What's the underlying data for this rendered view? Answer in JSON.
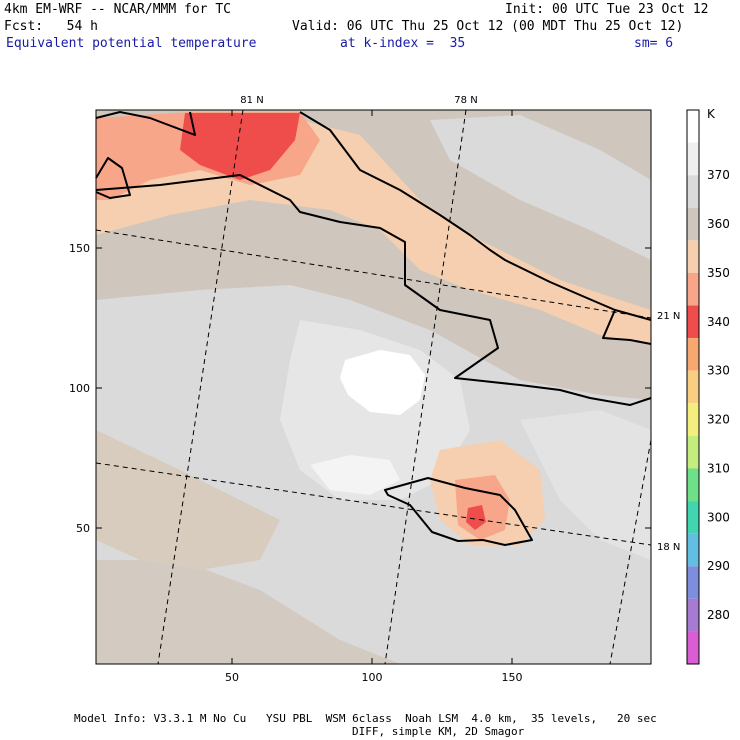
{
  "header": {
    "model_title": "4km EM-WRF -- NCAR/MMM for TC",
    "init": "Init: 00 UTC Tue 23 Oct 12",
    "forecast": "Fcst:   54 h",
    "valid": "Valid: 06 UTC Thu 25 Oct 12 (00 MDT Thu 25 Oct 12)",
    "field": "Equivalent potential temperature",
    "level": "at k-index =  35",
    "smoothing": "sm= 6"
  },
  "map": {
    "x_axis_ticks": [
      "50",
      "100",
      "150"
    ],
    "y_axis_ticks": [
      "150",
      "100",
      "50"
    ],
    "lon_labels": [
      "81 N",
      "78 N"
    ],
    "lat_labels": [
      "21 N",
      "18 N"
    ]
  },
  "colorbar": {
    "unit": "K",
    "levels": [
      "370",
      "360",
      "350",
      "340",
      "330",
      "320",
      "310",
      "300",
      "290",
      "280"
    ],
    "colors": [
      "#ffffff",
      "#efefef",
      "#dadada",
      "#cfc7bd",
      "#f5cfb0",
      "#f8a68a",
      "#ef4d4b",
      "#f6a870",
      "#f8cf82",
      "#f3ee7e",
      "#c4ec7e",
      "#6ee08a",
      "#42d6b0",
      "#62bfe2",
      "#7e8edd",
      "#a87bd2",
      "#d95ed4"
    ]
  },
  "footer": {
    "line1": "Model Info: V3.3.1 M No Cu   YSU PBL  WSM 6class  Noah LSM  4.0 km,  35 levels,   20 sec",
    "line2": "DIFF, simple KM, 2D Smagor"
  }
}
